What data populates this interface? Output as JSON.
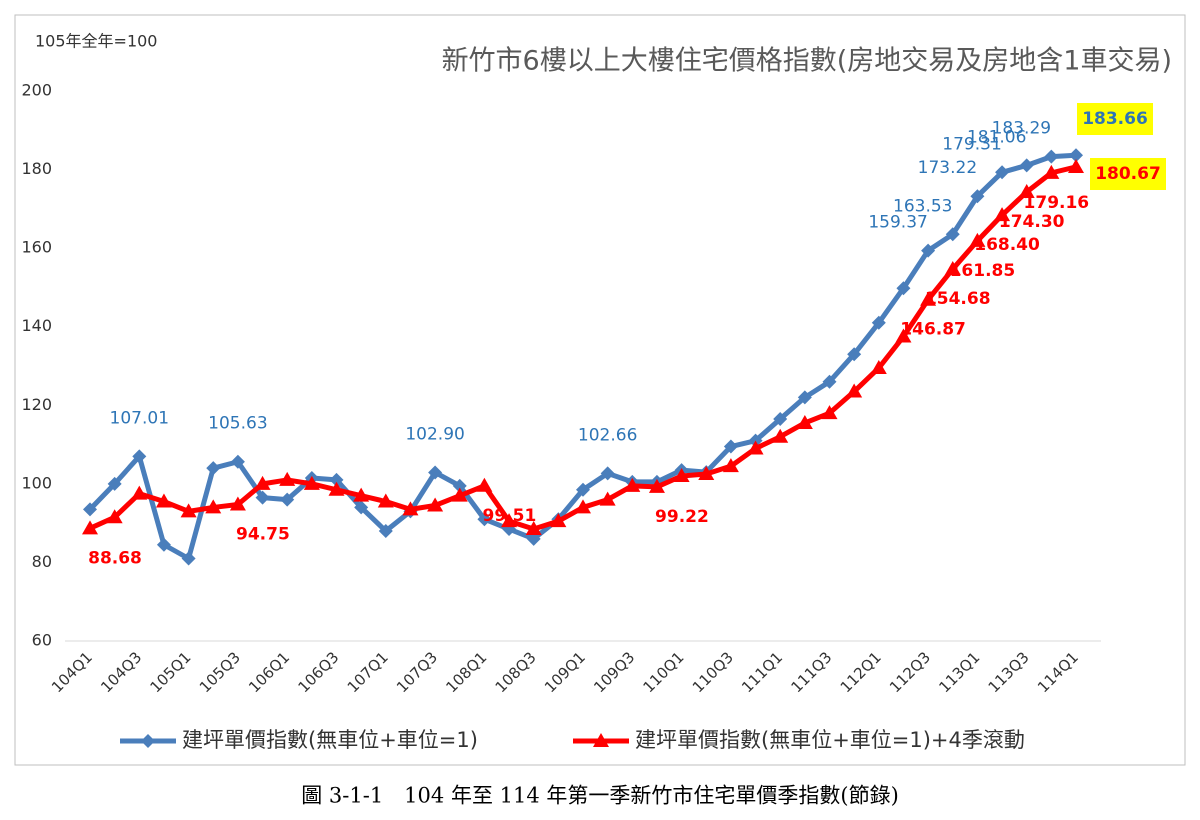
{
  "chart_data": {
    "type": "line",
    "title": "新竹市6樓以上大樓住宅價格指數(房地交易及房地含1車交易)",
    "subtitle": "105年全年=100",
    "caption": "圖 3-1-1　104 年至 114 年第一季新竹市住宅單價季指數(節錄)",
    "categories": [
      "104Q1",
      null,
      "104Q3",
      null,
      "105Q1",
      null,
      "105Q3",
      null,
      "106Q1",
      null,
      "106Q3",
      null,
      "107Q1",
      null,
      "107Q3",
      null,
      "108Q1",
      null,
      "108Q3",
      null,
      "109Q1",
      null,
      "109Q3",
      null,
      "110Q1",
      null,
      "110Q3",
      null,
      "111Q1",
      null,
      "111Q3",
      null,
      "112Q1",
      null,
      "112Q3",
      null,
      "113Q1",
      null,
      "113Q3",
      null,
      "114Q1"
    ],
    "series": [
      {
        "name": "建坪單價指數(無車位+車位=1)",
        "color": "#4a7ebb",
        "marker": "diamond",
        "values": [
          93.5,
          100,
          107.01,
          84.5,
          81,
          104,
          105.63,
          96.5,
          96,
          101.5,
          101,
          94,
          88,
          93,
          102.9,
          99.5,
          91,
          88.5,
          86,
          91,
          98.5,
          102.66,
          100.5,
          100.5,
          103.5,
          103,
          109.5,
          111,
          116.5,
          122,
          126,
          133,
          141,
          149.8,
          159.37,
          163.53,
          173.22,
          179.31,
          181.06,
          183.29,
          183.66
        ],
        "value_labels": [
          null,
          null,
          "107.01",
          null,
          null,
          null,
          "105.63",
          null,
          null,
          null,
          null,
          null,
          null,
          null,
          "102.90",
          null,
          null,
          null,
          null,
          null,
          null,
          "102.66",
          null,
          null,
          null,
          null,
          null,
          null,
          null,
          null,
          null,
          null,
          null,
          null,
          "159.37",
          "163.53",
          "173.22",
          "179.31",
          "181.06",
          "183.29",
          "183.66"
        ]
      },
      {
        "name": "建坪單價指數(無車位+車位=1)+4季滾動",
        "color": "#ff0000",
        "marker": "triangle",
        "values": [
          88.68,
          91.5,
          97.5,
          95.5,
          93,
          94,
          94.75,
          100,
          101,
          100,
          98.5,
          97,
          95.5,
          93.5,
          94.5,
          97,
          99.51,
          90.5,
          88.5,
          90.5,
          94,
          96,
          99.5,
          99.22,
          102,
          102.5,
          104.5,
          109,
          112,
          115.5,
          118,
          123.5,
          129.5,
          137.5,
          146.87,
          154.68,
          161.85,
          168.4,
          174.3,
          179.16,
          180.67
        ],
        "value_labels": [
          "88.68",
          null,
          null,
          null,
          null,
          null,
          "94.75",
          null,
          null,
          null,
          null,
          null,
          null,
          null,
          null,
          null,
          "99.51",
          null,
          null,
          null,
          null,
          null,
          null,
          "99.22",
          null,
          null,
          null,
          null,
          null,
          null,
          null,
          null,
          null,
          null,
          "146.87",
          "154.68",
          "161.85",
          "168.40",
          "174.30",
          "179.16",
          "180.67"
        ]
      }
    ],
    "ylim": [
      60,
      200
    ],
    "yticks": [
      60,
      80,
      100,
      120,
      140,
      160,
      180,
      200
    ],
    "grid": false,
    "legend": "bottom"
  }
}
